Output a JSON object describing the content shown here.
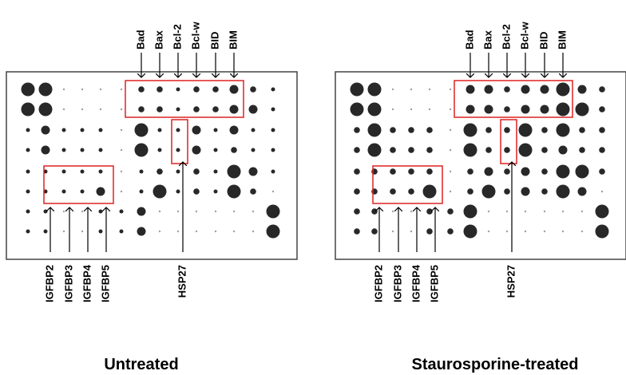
{
  "panels": [
    {
      "top_labels": [
        "Bad",
        "Bax",
        "Bcl-2",
        "Bcl-w",
        "BID",
        "BIM"
      ],
      "bottom_labels": [
        "IGFBP2",
        "IGFBP3",
        "IGFBP4",
        "IGFBP5"
      ],
      "hsp_label": "HSP27",
      "caption": "Untreated"
    },
    {
      "top_labels": [
        "Bad",
        "Bax",
        "Bcl-2",
        "Bcl-w",
        "BID",
        "BIM"
      ],
      "bottom_labels": [
        "IGFBP2",
        "IGFBP3",
        "IGFBP4",
        "IGFBP5"
      ],
      "hsp_label": "HSP27",
      "caption": "Staurosporine-treated"
    }
  ]
}
